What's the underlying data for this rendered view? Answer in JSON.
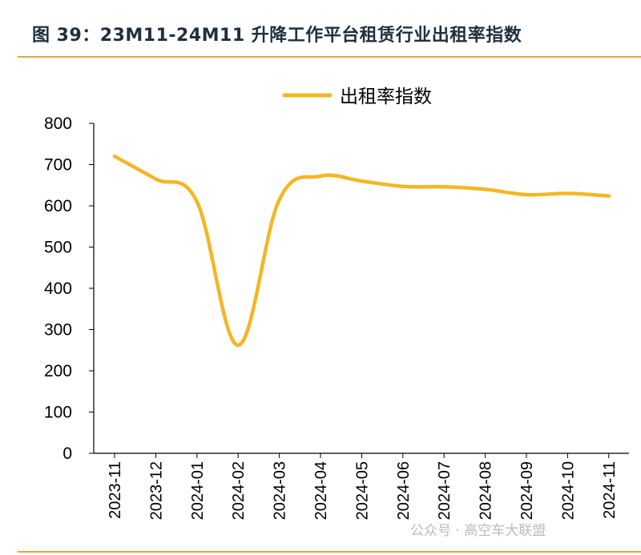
{
  "figure": {
    "title": "图 39：23M11-24M11 升降工作平台租赁行业出租率指数"
  },
  "watermark": "公众号 · 高空车大联盟",
  "colors": {
    "line": "#f4b625",
    "accent_rule": "#e8a33a",
    "axis": "#000000",
    "title": "#1f2f3f"
  },
  "chart_data": {
    "type": "line",
    "categories": [
      "2023-11",
      "2023-12",
      "2024-01",
      "2024-02",
      "2024-03",
      "2024-04",
      "2024-05",
      "2024-06",
      "2024-07",
      "2024-08",
      "2024-09",
      "2024-10",
      "2024-11"
    ],
    "series": [
      {
        "name": "出租率指数",
        "values": [
          720,
          665,
          610,
          262,
          615,
          672,
          660,
          647,
          646,
          640,
          627,
          630,
          624
        ]
      }
    ],
    "ylim": [
      0,
      800
    ],
    "yticks": [
      0,
      100,
      200,
      300,
      400,
      500,
      600,
      700,
      800
    ],
    "legend": "top-center",
    "grid": false,
    "smooth": true
  }
}
